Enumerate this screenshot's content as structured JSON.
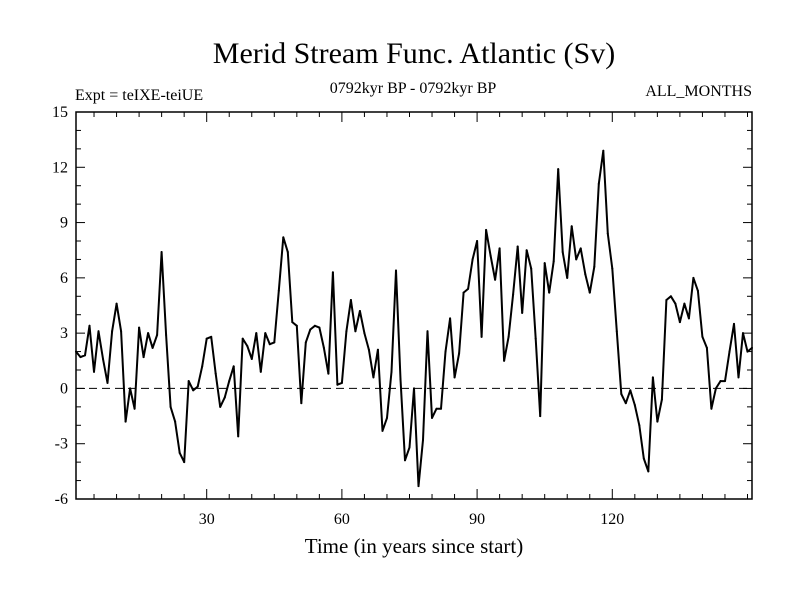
{
  "chart_data": {
    "type": "line",
    "title": "Merid Stream Func. Atlantic (Sv)",
    "subtitle_left": "Expt = teIXE-teiUE",
    "subtitle_center": "0792kyr BP - 0792kyr BP",
    "subtitle_right": "ALL_MONTHS",
    "xlabel": "Time (in years since start)",
    "ylabel": "",
    "xlim": [
      1,
      151
    ],
    "ylim": [
      -6,
      15
    ],
    "xticks": [
      30,
      60,
      90,
      120
    ],
    "yticks": [
      -6,
      -3,
      0,
      3,
      6,
      9,
      12,
      15
    ],
    "reference_line": 0,
    "series": [
      {
        "name": "Merid Stream Func. Atlantic",
        "x": [
          1,
          2,
          3,
          4,
          5,
          6,
          7,
          8,
          9,
          10,
          11,
          12,
          13,
          14,
          15,
          16,
          17,
          18,
          19,
          20,
          21,
          22,
          23,
          24,
          25,
          26,
          27,
          28,
          29,
          30,
          31,
          32,
          33,
          34,
          35,
          36,
          37,
          38,
          39,
          40,
          41,
          42,
          43,
          44,
          45,
          46,
          47,
          48,
          49,
          50,
          51,
          52,
          53,
          54,
          55,
          56,
          57,
          58,
          59,
          60,
          61,
          62,
          63,
          64,
          65,
          66,
          67,
          68,
          69,
          70,
          71,
          72,
          73,
          74,
          75,
          76,
          77,
          78,
          79,
          80,
          81,
          82,
          83,
          84,
          85,
          86,
          87,
          88,
          89,
          90,
          91,
          92,
          93,
          94,
          95,
          96,
          97,
          98,
          99,
          100,
          101,
          102,
          103,
          104,
          105,
          106,
          107,
          108,
          109,
          110,
          111,
          112,
          113,
          114,
          115,
          116,
          117,
          118,
          119,
          120,
          121,
          122,
          123,
          124,
          125,
          126,
          127,
          128,
          129,
          130,
          131,
          132,
          133,
          134,
          135,
          136,
          137,
          138,
          139,
          140,
          141,
          142,
          143,
          144,
          145,
          146,
          147,
          148,
          149,
          150,
          151
        ],
        "values": [
          2.0,
          1.7,
          1.8,
          3.4,
          0.9,
          3.1,
          1.6,
          0.3,
          3.1,
          4.6,
          3.1,
          -1.8,
          0.0,
          -1.1,
          3.3,
          1.7,
          3.0,
          2.2,
          2.9,
          7.4,
          2.9,
          -1.0,
          -1.8,
          -3.5,
          -4.0,
          0.4,
          -0.1,
          0.1,
          1.2,
          2.7,
          2.8,
          0.8,
          -1.0,
          -0.5,
          0.4,
          1.2,
          -2.6,
          2.7,
          2.3,
          1.6,
          3.0,
          0.9,
          3.0,
          2.4,
          2.5,
          5.3,
          8.2,
          7.4,
          3.6,
          3.4,
          -0.8,
          2.5,
          3.2,
          3.4,
          3.3,
          2.2,
          0.8,
          6.3,
          0.2,
          0.3,
          3.1,
          4.8,
          3.1,
          4.2,
          3.0,
          2.1,
          0.6,
          2.1,
          -2.3,
          -1.6,
          0.9,
          6.4,
          0.5,
          -3.9,
          -3.2,
          0.0,
          -5.3,
          -2.8,
          3.1,
          -1.6,
          -1.1,
          -1.1,
          2.0,
          3.8,
          0.6,
          1.9,
          5.2,
          5.4,
          7.0,
          8.0,
          2.8,
          8.6,
          7.2,
          5.9,
          7.6,
          1.5,
          2.8,
          5.1,
          7.7,
          4.1,
          7.5,
          6.5,
          2.7,
          -1.5,
          6.8,
          5.2,
          6.9,
          11.9,
          7.4,
          6.0,
          8.8,
          7.0,
          7.6,
          6.2,
          5.2,
          6.6,
          11.1,
          12.9,
          8.4,
          6.5,
          3.1,
          -0.3,
          -0.8,
          -0.1,
          -0.9,
          -2.0,
          -3.8,
          -4.5,
          0.6,
          -1.8,
          -0.6,
          4.8,
          5.0,
          4.6,
          3.6,
          4.6,
          3.8,
          6.0,
          5.3,
          2.8,
          2.2,
          -1.1,
          0.0,
          0.4,
          0.4,
          2.0,
          3.5,
          0.6,
          3.0,
          2.0,
          2.2
        ]
      }
    ]
  }
}
